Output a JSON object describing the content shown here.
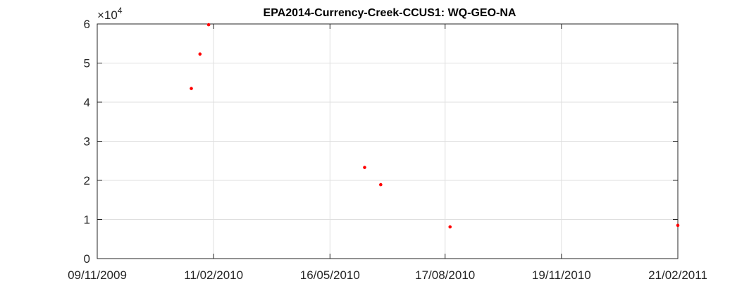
{
  "chart_data": {
    "type": "scatter",
    "title": "EPA2014-Currency-Creek-CCUS1: WQ-GEO-NA",
    "xlabel": "",
    "ylabel": "",
    "x_axis": {
      "type": "date",
      "range_days": [
        0,
        469
      ],
      "ticks": [
        {
          "day": 0,
          "label": "09/11/2009"
        },
        {
          "day": 94,
          "label": "11/02/2010"
        },
        {
          "day": 188,
          "label": "16/05/2010"
        },
        {
          "day": 281,
          "label": "17/08/2010"
        },
        {
          "day": 375,
          "label": "19/11/2010"
        },
        {
          "day": 469,
          "label": "21/02/2011"
        }
      ]
    },
    "y_axis": {
      "range": [
        0,
        6
      ],
      "multiplier_base": "×10",
      "multiplier_exp": "4",
      "ticks": [
        {
          "value": 0,
          "label": "0"
        },
        {
          "value": 1,
          "label": "1"
        },
        {
          "value": 2,
          "label": "2"
        },
        {
          "value": 3,
          "label": "3"
        },
        {
          "value": 4,
          "label": "4"
        },
        {
          "value": 5,
          "label": "5"
        },
        {
          "value": 6,
          "label": "6"
        }
      ]
    },
    "grid": true,
    "series": [
      {
        "name": "WQ-GEO-NA",
        "color": "#ff0000",
        "points": [
          {
            "x_day": 76,
            "y": 4.35
          },
          {
            "x_day": 83,
            "y": 5.23
          },
          {
            "x_day": 90,
            "y": 5.98
          },
          {
            "x_day": 216,
            "y": 2.33
          },
          {
            "x_day": 229,
            "y": 1.89
          },
          {
            "x_day": 285,
            "y": 0.81
          },
          {
            "x_day": 469,
            "y": 0.85
          }
        ]
      }
    ]
  }
}
